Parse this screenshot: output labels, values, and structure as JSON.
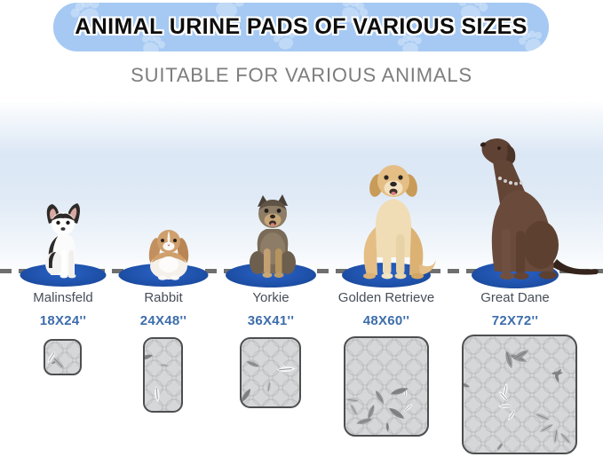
{
  "banner": {
    "title": "ANIMAL URINE PADS OF VARIOUS SIZES",
    "bg_color": "#a5c9f3",
    "paw_print_color": "rgba(255,255,255,0.30)"
  },
  "subtitle": "SUITABLE FOR VARIOUS ANIMALS",
  "animals": [
    {
      "name": "Malinsfeld",
      "size": "18X24''"
    },
    {
      "name": "Rabbit",
      "size": "24X48''"
    },
    {
      "name": "Yorkie",
      "size": "36X41''"
    },
    {
      "name": "Golden Retrieve",
      "size": "48X60''"
    },
    {
      "name": "Great Dane",
      "size": "72X72''"
    }
  ],
  "colors": {
    "mat_oval_blue": "#1d4fa6",
    "size_text_blue": "#3d6dab",
    "name_text_gray": "#474e59",
    "subtitle_gray": "#7d7d7d",
    "dashed_line_gray": "#6f6f6f",
    "pad_fill_gray": "#d6d7d8",
    "pad_border_gray": "#4c4e50"
  }
}
